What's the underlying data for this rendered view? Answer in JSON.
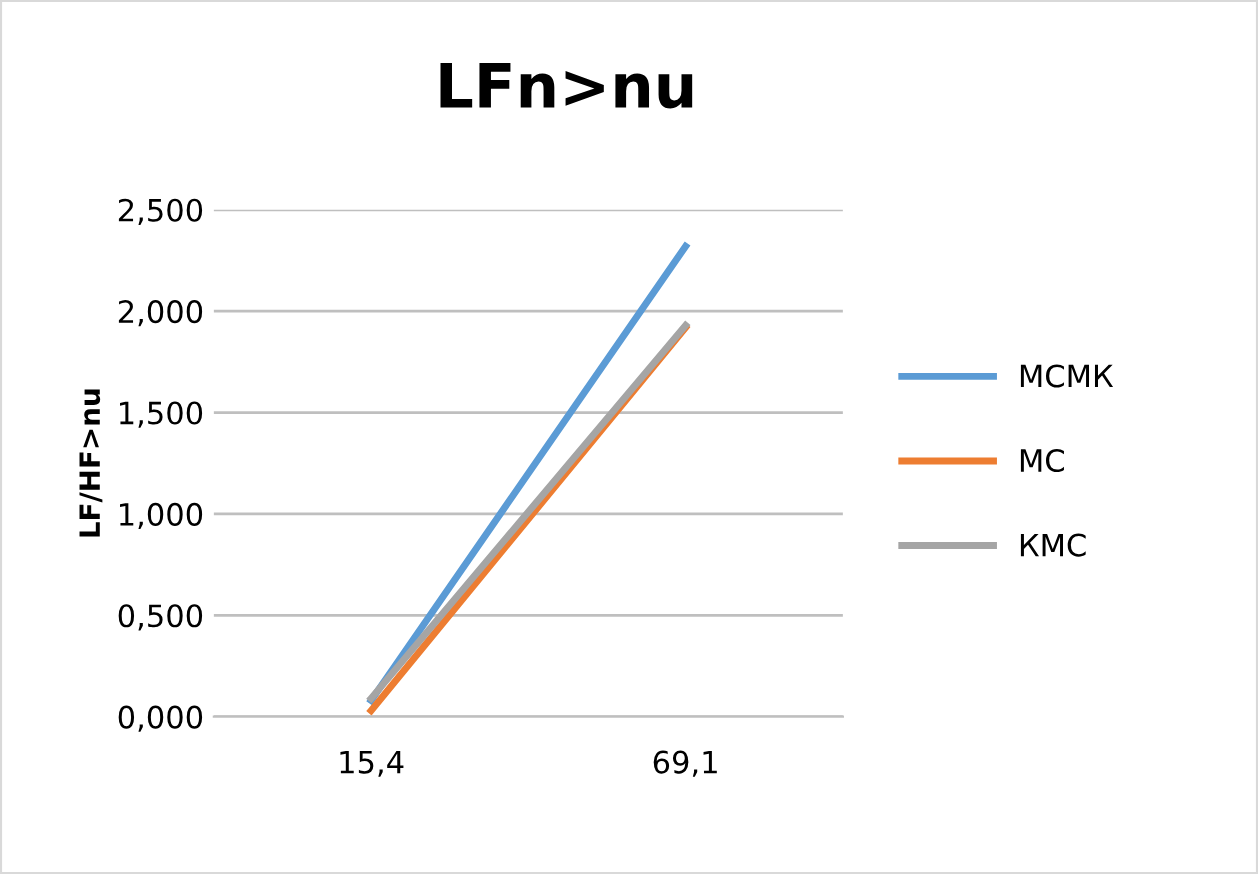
{
  "chart_data": {
    "type": "line",
    "title": "LFn>nu",
    "ylabel": "LF/HF>nu",
    "categories": [
      "15,4",
      "69,1"
    ],
    "series": [
      {
        "name": "МСМК",
        "color": "#5b9bd5",
        "values": [
          0.08,
          2.32
        ]
      },
      {
        "name": "МС",
        "color": "#ed7d31",
        "values": [
          0.03,
          1.92
        ]
      },
      {
        "name": "КМС",
        "color": "#a5a5a5",
        "values": [
          0.09,
          1.93
        ]
      }
    ],
    "ylim": [
      0,
      2.5
    ],
    "yticks": [
      {
        "value": 0,
        "label": "0,000"
      },
      {
        "value": 0.5,
        "label": "0,500"
      },
      {
        "value": 1,
        "label": "1,000"
      },
      {
        "value": 1.5,
        "label": "1,500"
      },
      {
        "value": 2,
        "label": "2,000"
      },
      {
        "value": 2.5,
        "label": "2,500"
      }
    ],
    "grid": "y",
    "legend": "right",
    "marker": "none",
    "line_style": "solid"
  }
}
